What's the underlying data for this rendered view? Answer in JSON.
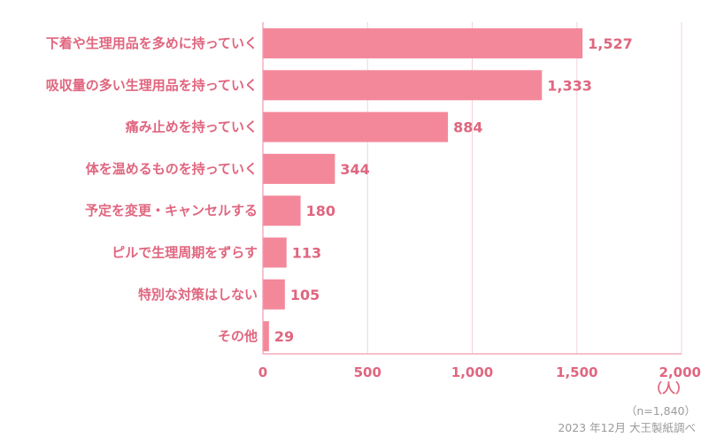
{
  "chart_data": {
    "type": "bar",
    "orientation": "horizontal",
    "categories": [
      "下着や生理用品を多めに持っていく",
      "吸収量の多い生理用品を持っていく",
      "痛み止めを持っていく",
      "体を温めるものを持っていく",
      "予定を変更・キャンセルする",
      "ピルで生理周期をずらす",
      "特別な対策はしない",
      "その他"
    ],
    "values": [
      1527,
      1333,
      884,
      344,
      180,
      113,
      105,
      29
    ],
    "value_labels": [
      "1,527",
      "1,333",
      "884",
      "344",
      "180",
      "113",
      "105",
      "29"
    ],
    "xlim": [
      0,
      2000
    ],
    "xticks": [
      0,
      500,
      1000,
      1500,
      2000
    ],
    "xtick_labels": [
      "0",
      "500",
      "1,000",
      "1,500",
      "2,000"
    ],
    "xlabel": "（人）",
    "grid": true,
    "colors": {
      "bar": "#f4889b",
      "text": "#e0667f",
      "grid": "#f3d3da",
      "axis": "#ee9aad",
      "note": "#9a9a9a"
    }
  },
  "notes": {
    "sample": "（n=1,840）",
    "source": "2023 年12月 大王製紙調べ"
  }
}
